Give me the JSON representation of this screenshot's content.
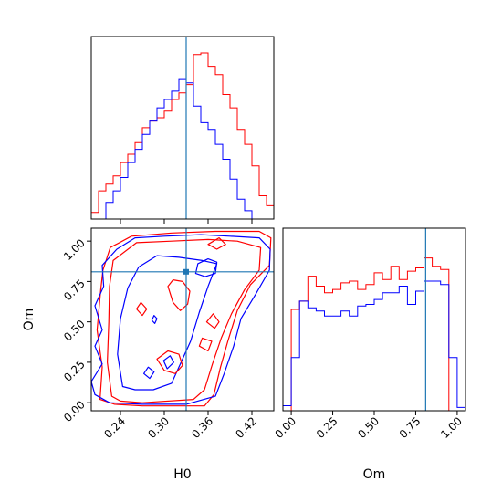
{
  "chart_data": {
    "type": "corner",
    "parameters": [
      "H0",
      "Om"
    ],
    "truth": {
      "H0": 0.33,
      "Om": 0.81
    },
    "colors": {
      "red": "#ff0000",
      "blue": "#0000ff",
      "truth": "#1f77b4"
    },
    "panels": {
      "hist_H0": {
        "type": "histogram-step",
        "xlim": [
          0.2,
          0.45
        ],
        "bin_edges": [
          0.2,
          0.21,
          0.22,
          0.23,
          0.24,
          0.25,
          0.26,
          0.27,
          0.28,
          0.29,
          0.3,
          0.31,
          0.32,
          0.33,
          0.34,
          0.35,
          0.36,
          0.37,
          0.38,
          0.39,
          0.4,
          0.41,
          0.42,
          0.43,
          0.44,
          0.45
        ],
        "series": [
          {
            "color": "red",
            "values": [
              0.04,
              0.17,
              0.21,
              0.26,
              0.34,
              0.39,
              0.46,
              0.55,
              0.59,
              0.61,
              0.65,
              0.72,
              0.76,
              0.81,
              0.99,
              1.0,
              0.92,
              0.87,
              0.75,
              0.67,
              0.54,
              0.45,
              0.32,
              0.14,
              0.08
            ]
          },
          {
            "color": "blue",
            "values": [
              0.0,
              0.0,
              0.1,
              0.17,
              0.25,
              0.34,
              0.42,
              0.51,
              0.59,
              0.67,
              0.72,
              0.77,
              0.84,
              0.82,
              0.68,
              0.58,
              0.54,
              0.45,
              0.36,
              0.24,
              0.12,
              0.05,
              0.0,
              0.0,
              0.0
            ]
          }
        ]
      },
      "hist_Om": {
        "type": "histogram-step",
        "xlim": [
          -0.05,
          1.05
        ],
        "xticks": [
          "0.00",
          "0.25",
          "0.50",
          "0.75",
          "1.00"
        ],
        "xlabel": "Om",
        "bin_edges": [
          -0.05,
          0.0,
          0.05,
          0.1,
          0.15,
          0.2,
          0.25,
          0.3,
          0.35,
          0.4,
          0.45,
          0.5,
          0.55,
          0.6,
          0.65,
          0.7,
          0.75,
          0.8,
          0.85,
          0.9,
          0.95,
          1.0,
          1.05
        ],
        "series": [
          {
            "color": "red",
            "values": [
              0.0,
              0.61,
              0.66,
              0.81,
              0.75,
              0.71,
              0.73,
              0.77,
              0.78,
              0.73,
              0.76,
              0.83,
              0.79,
              0.87,
              0.79,
              0.84,
              0.86,
              0.92,
              0.87,
              0.85,
              0.0,
              0.0
            ]
          },
          {
            "color": "blue",
            "values": [
              0.03,
              0.32,
              0.66,
              0.62,
              0.6,
              0.57,
              0.57,
              0.6,
              0.57,
              0.63,
              0.64,
              0.67,
              0.71,
              0.71,
              0.75,
              0.64,
              0.72,
              0.78,
              0.78,
              0.76,
              0.32,
              0.02
            ]
          }
        ]
      },
      "scatter_H0_Om": {
        "type": "contour",
        "xlim": [
          0.2,
          0.45
        ],
        "ylim": [
          -0.05,
          1.08
        ],
        "xticks": [
          "0.24",
          "0.30",
          "0.36",
          "0.42"
        ],
        "yticks": [
          "0.00",
          "0.25",
          "0.50",
          "0.75",
          "1.00"
        ],
        "xlabel": "H0",
        "ylabel": "Om",
        "contours": [
          {
            "color": "red",
            "points": [
              [
                0.212,
                0.02
              ],
              [
                0.215,
                0.22
              ],
              [
                0.208,
                0.45
              ],
              [
                0.213,
                0.7
              ],
              [
                0.216,
                0.82
              ],
              [
                0.226,
                0.96
              ],
              [
                0.255,
                1.03
              ],
              [
                0.31,
                1.05
              ],
              [
                0.37,
                1.06
              ],
              [
                0.43,
                1.06
              ],
              [
                0.446,
                1.02
              ],
              [
                0.444,
                0.85
              ],
              [
                0.418,
                0.73
              ],
              [
                0.4,
                0.57
              ],
              [
                0.387,
                0.38
              ],
              [
                0.377,
                0.22
              ],
              [
                0.368,
                0.05
              ],
              [
                0.355,
                -0.02
              ],
              [
                0.27,
                -0.02
              ],
              [
                0.232,
                -0.01
              ]
            ]
          },
          {
            "color": "red",
            "points": [
              [
                0.228,
                0.04
              ],
              [
                0.222,
                0.25
              ],
              [
                0.224,
                0.5
              ],
              [
                0.225,
                0.72
              ],
              [
                0.23,
                0.88
              ],
              [
                0.262,
                0.99
              ],
              [
                0.31,
                1.0
              ],
              [
                0.36,
                1.01
              ],
              [
                0.4,
                1.0
              ],
              [
                0.432,
                0.96
              ],
              [
                0.43,
                0.82
              ],
              [
                0.41,
                0.7
              ],
              [
                0.392,
                0.55
              ],
              [
                0.378,
                0.4
              ],
              [
                0.366,
                0.24
              ],
              [
                0.355,
                0.08
              ],
              [
                0.34,
                0.02
              ],
              [
                0.27,
                0.0
              ],
              [
                0.24,
                0.01
              ]
            ]
          },
          {
            "color": "blue",
            "points": [
              [
                0.2,
                0.13
              ],
              [
                0.215,
                0.24
              ],
              [
                0.205,
                0.35
              ],
              [
                0.215,
                0.45
              ],
              [
                0.205,
                0.6
              ],
              [
                0.217,
                0.72
              ],
              [
                0.215,
                0.85
              ],
              [
                0.235,
                0.95
              ],
              [
                0.26,
                1.02
              ],
              [
                0.3,
                1.03
              ],
              [
                0.35,
                1.04
              ],
              [
                0.39,
                1.03
              ],
              [
                0.43,
                1.02
              ],
              [
                0.445,
                0.95
              ],
              [
                0.444,
                0.82
              ],
              [
                0.425,
                0.67
              ],
              [
                0.405,
                0.52
              ],
              [
                0.395,
                0.35
              ],
              [
                0.382,
                0.18
              ],
              [
                0.37,
                0.04
              ],
              [
                0.33,
                -0.01
              ],
              [
                0.27,
                -0.01
              ],
              [
                0.225,
                0.0
              ],
              [
                0.205,
                0.05
              ]
            ]
          },
          {
            "color": "blue",
            "points": [
              [
                0.243,
                0.1
              ],
              [
                0.236,
                0.3
              ],
              [
                0.24,
                0.52
              ],
              [
                0.25,
                0.71
              ],
              [
                0.265,
                0.84
              ],
              [
                0.29,
                0.91
              ],
              [
                0.32,
                0.9
              ],
              [
                0.352,
                0.88
              ],
              [
                0.372,
                0.86
              ],
              [
                0.36,
                0.72
              ],
              [
                0.348,
                0.56
              ],
              [
                0.336,
                0.38
              ],
              [
                0.32,
                0.22
              ],
              [
                0.31,
                0.12
              ],
              [
                0.285,
                0.08
              ],
              [
                0.26,
                0.08
              ]
            ]
          },
          {
            "color": "red",
            "points": [
              [
                0.305,
                0.72
              ],
              [
                0.312,
                0.62
              ],
              [
                0.322,
                0.57
              ],
              [
                0.332,
                0.61
              ],
              [
                0.335,
                0.69
              ],
              [
                0.325,
                0.75
              ],
              [
                0.312,
                0.76
              ]
            ]
          },
          {
            "color": "red",
            "points": [
              [
                0.29,
                0.27
              ],
              [
                0.3,
                0.2
              ],
              [
                0.315,
                0.18
              ],
              [
                0.325,
                0.23
              ],
              [
                0.32,
                0.3
              ],
              [
                0.305,
                0.32
              ]
            ]
          },
          {
            "color": "blue",
            "points": [
              [
                0.304,
                0.21
              ],
              [
                0.313,
                0.25
              ],
              [
                0.308,
                0.29
              ],
              [
                0.299,
                0.26
              ]
            ]
          },
          {
            "color": "blue",
            "points": [
              [
                0.343,
                0.8
              ],
              [
                0.356,
                0.78
              ],
              [
                0.37,
                0.8
              ],
              [
                0.372,
                0.87
              ],
              [
                0.36,
                0.89
              ],
              [
                0.346,
                0.86
              ]
            ]
          },
          {
            "color": "red",
            "points": [
              [
                0.358,
                0.5
              ],
              [
                0.369,
                0.46
              ],
              [
                0.375,
                0.5
              ],
              [
                0.367,
                0.55
              ]
            ]
          },
          {
            "color": "red",
            "points": [
              [
                0.348,
                0.35
              ],
              [
                0.36,
                0.32
              ],
              [
                0.365,
                0.38
              ],
              [
                0.352,
                0.4
              ]
            ]
          },
          {
            "color": "red",
            "points": [
              [
                0.36,
                0.98
              ],
              [
                0.372,
                0.95
              ],
              [
                0.384,
                0.98
              ],
              [
                0.375,
                1.02
              ]
            ]
          },
          {
            "color": "blue",
            "points": [
              [
                0.272,
                0.18
              ],
              [
                0.28,
                0.15
              ],
              [
                0.286,
                0.19
              ],
              [
                0.278,
                0.22
              ]
            ]
          },
          {
            "color": "red",
            "points": [
              [
                0.262,
                0.58
              ],
              [
                0.27,
                0.54
              ],
              [
                0.276,
                0.58
              ],
              [
                0.268,
                0.62
              ]
            ]
          },
          {
            "color": "blue",
            "points": [
              [
                0.283,
                0.51
              ],
              [
                0.287,
                0.49
              ],
              [
                0.29,
                0.52
              ],
              [
                0.286,
                0.54
              ]
            ]
          }
        ]
      }
    }
  }
}
